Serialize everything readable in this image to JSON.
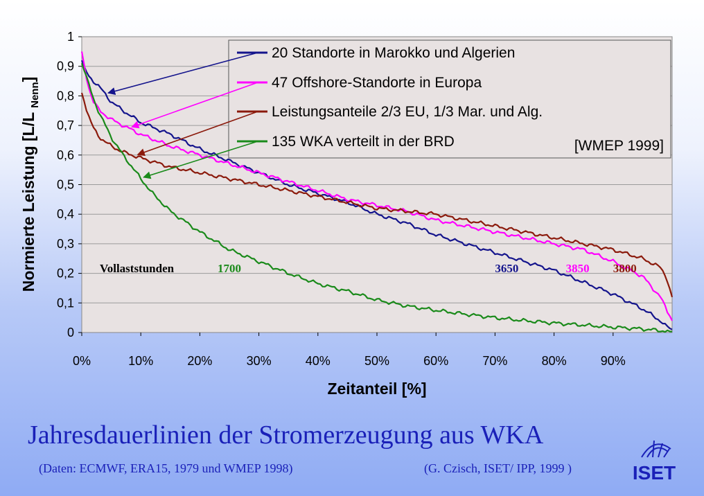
{
  "chart_data": {
    "type": "line",
    "title": "",
    "xlabel": "Zeitanteil [%]",
    "ylabel": "Normierte Leistung [L/L Nenn]",
    "ylabel_main": "Normierte Leistung [L/L ",
    "ylabel_sub": "Nenn",
    "ylabel_end": "]",
    "xlim": [
      0,
      100
    ],
    "ylim": [
      0,
      1
    ],
    "x_ticks": [
      "0%",
      "10%",
      "20%",
      "30%",
      "40%",
      "50%",
      "60%",
      "70%",
      "80%",
      "90%"
    ],
    "y_ticks": [
      "0",
      "0,1",
      "0,2",
      "0,3",
      "0,4",
      "0,5",
      "0,6",
      "0,7",
      "0,8",
      "0,9",
      "1"
    ],
    "grid": "horizontal",
    "legend_position": "top-right",
    "legend_note": "[WMEP 1999]",
    "annotation_label": "Vollaststunden",
    "series": [
      {
        "name": "20 Standorte in Marokko und Algerien",
        "color": "#14148c",
        "full_load_hours": "3650",
        "annotation_x": 70,
        "x": [
          0,
          1,
          2,
          3,
          5,
          7,
          10,
          15,
          20,
          25,
          30,
          35,
          40,
          45,
          50,
          55,
          60,
          65,
          70,
          75,
          80,
          85,
          90,
          95,
          98,
          99,
          100
        ],
        "y": [
          0.92,
          0.87,
          0.85,
          0.83,
          0.78,
          0.75,
          0.71,
          0.67,
          0.62,
          0.58,
          0.54,
          0.5,
          0.47,
          0.44,
          0.4,
          0.37,
          0.33,
          0.3,
          0.27,
          0.24,
          0.21,
          0.17,
          0.13,
          0.08,
          0.04,
          0.02,
          0.01
        ]
      },
      {
        "name": "47 Offshore-Standorte in Europa",
        "color": "#ff00ff",
        "full_load_hours": "3850",
        "annotation_x": 82,
        "x": [
          0,
          1,
          2,
          3,
          5,
          7,
          10,
          15,
          20,
          25,
          30,
          35,
          40,
          45,
          50,
          55,
          60,
          65,
          70,
          75,
          80,
          85,
          90,
          95,
          98,
          99,
          100
        ],
        "y": [
          0.95,
          0.84,
          0.78,
          0.75,
          0.72,
          0.7,
          0.67,
          0.63,
          0.6,
          0.57,
          0.54,
          0.51,
          0.48,
          0.45,
          0.43,
          0.41,
          0.38,
          0.36,
          0.34,
          0.32,
          0.3,
          0.28,
          0.24,
          0.19,
          0.12,
          0.08,
          0.04
        ]
      },
      {
        "name": "Leistungsanteile 2/3 EU, 1/3 Mar. und Alg.",
        "color": "#8b1a0c",
        "full_load_hours": "3800",
        "annotation_x": 90,
        "x": [
          0,
          1,
          2,
          3,
          5,
          7,
          10,
          15,
          20,
          25,
          30,
          35,
          40,
          45,
          50,
          55,
          60,
          65,
          70,
          75,
          80,
          85,
          90,
          95,
          98,
          99,
          100
        ],
        "y": [
          0.81,
          0.74,
          0.69,
          0.66,
          0.63,
          0.61,
          0.59,
          0.56,
          0.54,
          0.52,
          0.5,
          0.48,
          0.46,
          0.44,
          0.42,
          0.41,
          0.4,
          0.38,
          0.36,
          0.34,
          0.32,
          0.3,
          0.28,
          0.25,
          0.22,
          0.19,
          0.12
        ]
      },
      {
        "name": "135 WKA verteilt in der BRD",
        "color": "#1a8a1a",
        "full_load_hours": "1700",
        "annotation_x": 23,
        "x": [
          0,
          1,
          2,
          3,
          5,
          7,
          10,
          12,
          15,
          20,
          25,
          30,
          35,
          40,
          45,
          50,
          55,
          60,
          65,
          70,
          75,
          80,
          85,
          90,
          95,
          100
        ],
        "y": [
          0.91,
          0.85,
          0.79,
          0.74,
          0.66,
          0.6,
          0.52,
          0.47,
          0.41,
          0.34,
          0.28,
          0.24,
          0.2,
          0.165,
          0.14,
          0.11,
          0.09,
          0.075,
          0.062,
          0.05,
          0.04,
          0.032,
          0.025,
          0.018,
          0.012,
          0.003
        ]
      }
    ]
  },
  "footer": {
    "title": "Jahresdauerlinien der Stromerzeugung aus WKA",
    "source_left": "(Daten: ECMWF, ERA15, 1979 und WMEP 1998)",
    "source_right": "(G. Czisch, ISET/ IPP, 1999 )",
    "logo_text": "ISET"
  }
}
